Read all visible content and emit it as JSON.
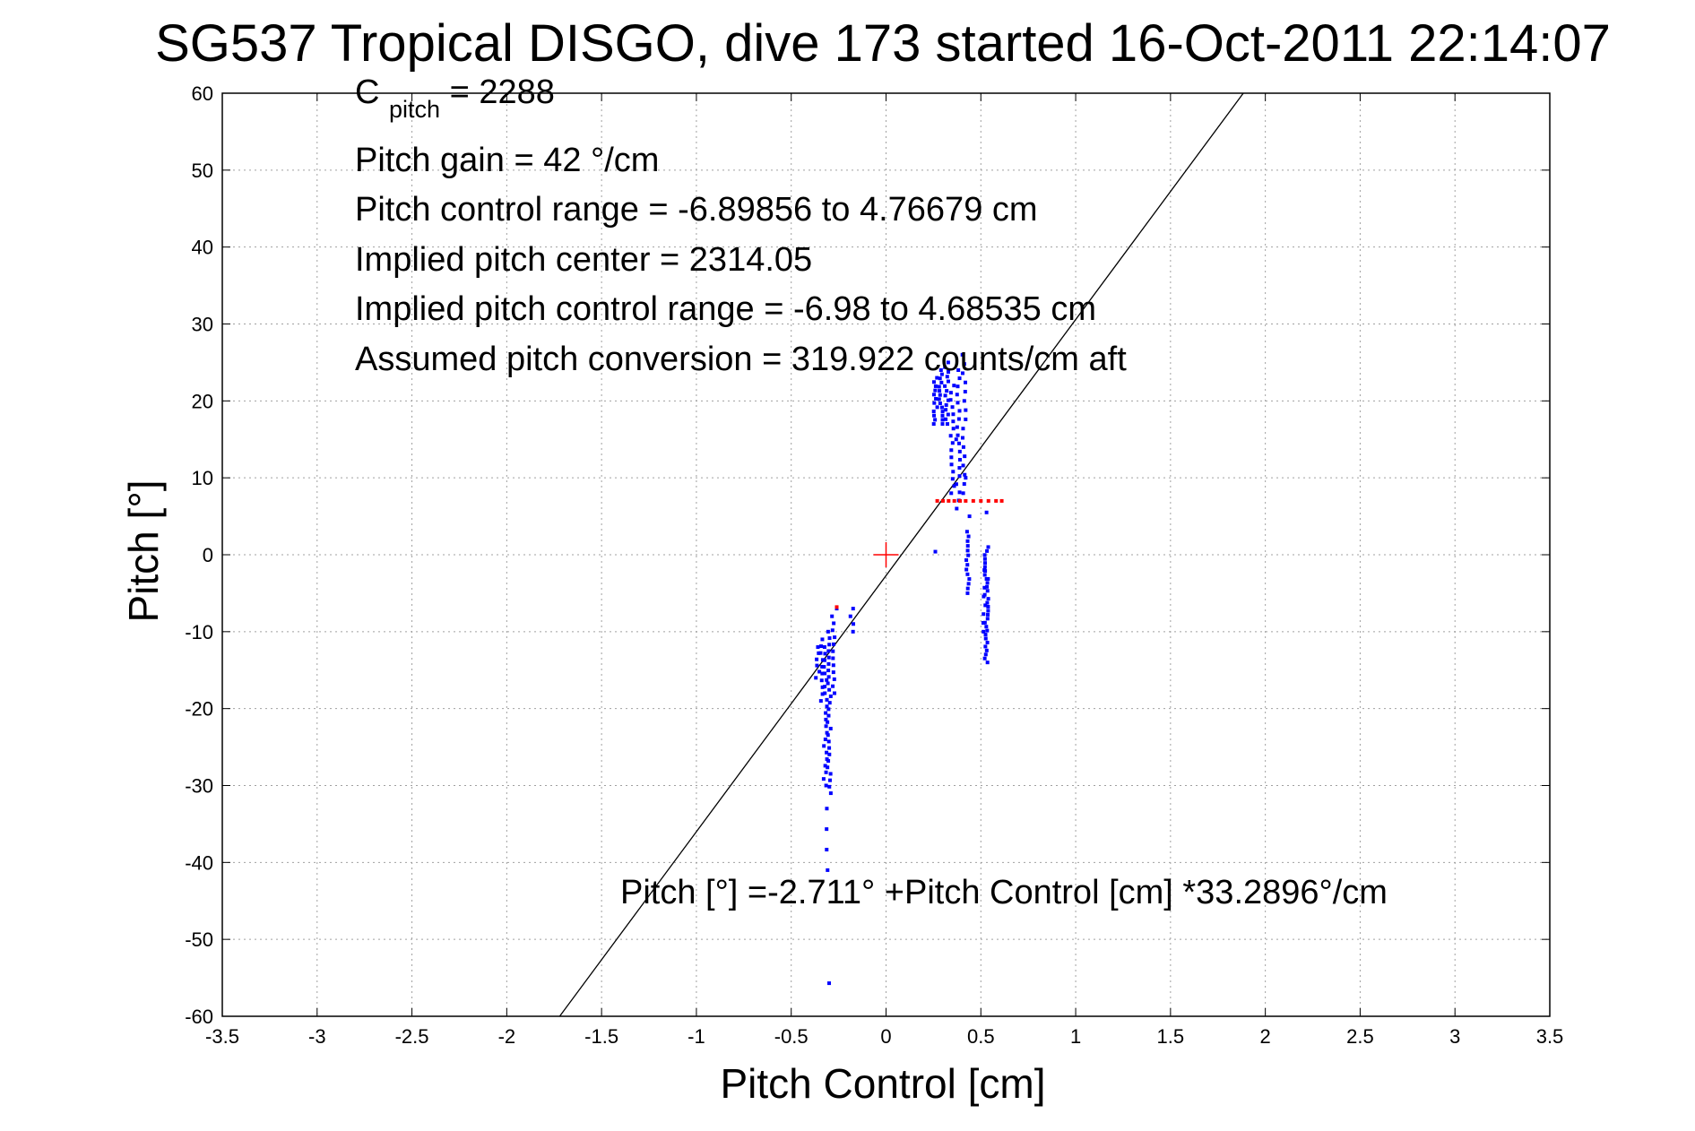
{
  "colors": {
    "background": "#ffffff",
    "axes": "#000000",
    "grid": "#a0a0a0",
    "points": "#0000ff",
    "flagged_points": "#ff0000",
    "center_marker": "#ff0000",
    "fit_line": "#000000"
  },
  "chart_data": {
    "type": "scatter",
    "title": "SG537 Tropical DISGO, dive 173 started 16-Oct-2011 22:14:07",
    "xlabel": "Pitch Control [cm]",
    "ylabel": "Pitch [°]",
    "xlim": [
      -3.5,
      3.5
    ],
    "ylim": [
      -60,
      60
    ],
    "xticks": [
      -3.5,
      -3,
      -2.5,
      -2,
      -1.5,
      -1,
      -0.5,
      0,
      0.5,
      1,
      1.5,
      2,
      2.5,
      3,
      3.5
    ],
    "yticks": [
      -60,
      -50,
      -40,
      -30,
      -20,
      -10,
      0,
      10,
      20,
      30,
      40,
      50,
      60
    ],
    "xtick_labels": [
      "-3.5",
      "-3",
      "-2.5",
      "-2",
      "-1.5",
      "-1",
      "-0.5",
      "0",
      "0.5",
      "1",
      "1.5",
      "2",
      "2.5",
      "3",
      "3.5"
    ],
    "ytick_labels": [
      "-60",
      "-50",
      "-40",
      "-30",
      "-20",
      "-10",
      "0",
      "10",
      "20",
      "30",
      "40",
      "50",
      "60"
    ],
    "grid": true,
    "fit_line": {
      "intercept": -2.711,
      "slope": 33.2896
    },
    "center_marker": [
      0,
      0
    ],
    "annotations": {
      "c_pitch_main": "C",
      "c_pitch_sub": "pitch",
      "c_pitch_value": " = 2288",
      "pitch_gain": "Pitch gain = 42 °/cm",
      "pitch_control_range": "Pitch control range = -6.89856 to 4.76679 cm",
      "implied_pitch_center": "Implied pitch center = 2314.05",
      "implied_pitch_control_range": "Implied pitch control range = -6.98 to 4.68535 cm",
      "assumed_pitch_conversion": "Assumed pitch conversion = 319.922 counts/cm aft",
      "fit_equation": "Pitch [°] =-2.711° +Pitch Control [cm] *33.2896°/cm"
    },
    "series": [
      {
        "color": "#0000ff",
        "clusters": [
          {
            "x": -0.36,
            "y_from": -16,
            "y_to": -12,
            "n": 6
          },
          {
            "x": -0.34,
            "y_from": -19,
            "y_to": -11,
            "n": 10
          },
          {
            "x": -0.32,
            "y_from": -30,
            "y_to": -12,
            "n": 22
          },
          {
            "x": -0.3,
            "y_from": -31,
            "y_to": -10,
            "n": 26
          },
          {
            "x": -0.28,
            "y_from": -18,
            "y_to": -8,
            "n": 12
          },
          {
            "x": -0.31,
            "y_from": -41,
            "y_to": -33,
            "n": 4
          },
          {
            "x": -0.18,
            "y_from": -10,
            "y_to": -7,
            "n": 4
          },
          {
            "x": 0.26,
            "y_from": 17,
            "y_to": 23,
            "n": 12
          },
          {
            "x": 0.29,
            "y_from": 17,
            "y_to": 24,
            "n": 14
          },
          {
            "x": 0.32,
            "y_from": 17,
            "y_to": 25,
            "n": 14
          },
          {
            "x": 0.35,
            "y_from": 8,
            "y_to": 22,
            "n": 16
          },
          {
            "x": 0.38,
            "y_from": 6,
            "y_to": 24,
            "n": 18
          },
          {
            "x": 0.41,
            "y_from": 8,
            "y_to": 26,
            "n": 16
          },
          {
            "x": 0.43,
            "y_from": -5,
            "y_to": 3,
            "n": 14
          },
          {
            "x": 0.53,
            "y_from": -14,
            "y_to": 1,
            "n": 30
          },
          {
            "x": 0.52,
            "y_from": -10,
            "y_to": -2,
            "n": 8
          }
        ],
        "singles": [
          [
            -0.3,
            -55.7
          ],
          [
            -0.26,
            -7
          ],
          [
            0.26,
            0.4
          ],
          [
            0.53,
            5.5
          ],
          [
            0.44,
            5
          ],
          [
            0.42,
            10
          ],
          [
            0.37,
            15
          ]
        ]
      },
      {
        "color": "#ff0000",
        "singles": [
          [
            0.27,
            7
          ],
          [
            0.3,
            7
          ],
          [
            0.33,
            7
          ],
          [
            0.36,
            7
          ],
          [
            0.39,
            7
          ],
          [
            0.42,
            7
          ],
          [
            0.46,
            7
          ],
          [
            0.5,
            7
          ],
          [
            0.54,
            7
          ],
          [
            0.58,
            7
          ],
          [
            0.61,
            7
          ],
          [
            -0.26,
            -6.8
          ]
        ]
      }
    ]
  }
}
